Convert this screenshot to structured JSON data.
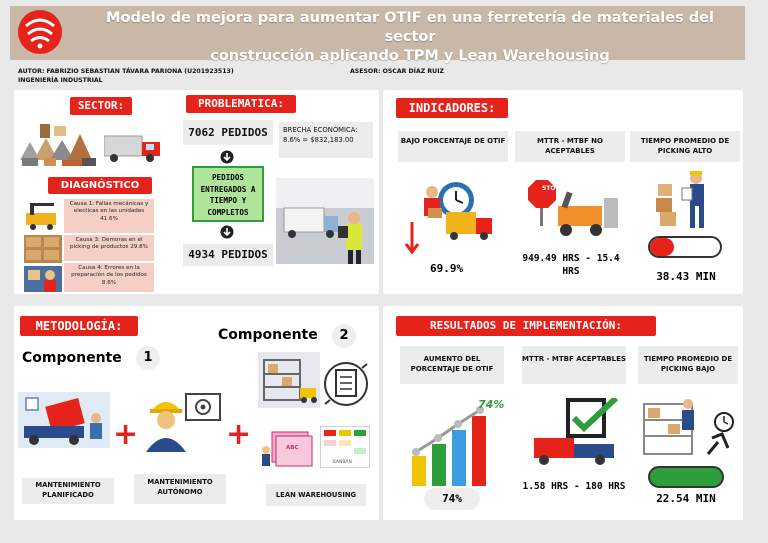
{
  "header": {
    "title_line1": "Modelo de mejora para aumentar OTIF en una ferretería de materiales del sector",
    "title_line2": "construcción aplicando TPM y Lean Warehousing",
    "author": "AUTOR: FABRIZIO SEBASTIAN TÁVARA PARIONA (U201923513)",
    "career": "INGENIERÍA INDUSTRIAL",
    "advisor": "ASESOR: OSCAR DÍAZ RUIZ"
  },
  "sector": {
    "title": "SECTOR:"
  },
  "problematica": {
    "title": "PROBLEMATICA:",
    "pedidos_total": "7062 PEDIDOS",
    "brecha": "BRECHA ECONÓMICA: 8.6% = $832,183.00",
    "otif_box": "PEDIDOS ENTREGADOS A TIEMPO Y COMPLETOS",
    "pedidos_ok": "4934 PEDIDOS"
  },
  "diagnostico": {
    "title": "DIAGNÓSTICO",
    "causa1": "Causa 1: Fallas mecánicas y electicas en las unidades 41.6%",
    "causa3": "Causa 3: Demoras en el picking de productos 29.8%",
    "causa4": "Causa 4: Errores en la preparación de los pedidos 8.6%"
  },
  "indicadores": {
    "title": "INDICADORES:",
    "otif_label": "BAJO PORCENTAJE DE OTIF",
    "otif_value": "69.9%",
    "mttr_label": "MTTR - MTBF NO ACEPTABLES",
    "mttr_value": "949.49 HRS - 15.4 HRS",
    "picking_label": "TIEMPO PROMEDIO DE PICKING ALTO",
    "picking_value": "38.43 MIN",
    "stop_sign": "STOP"
  },
  "metodologia": {
    "title": "METODOLOGÍA:",
    "componente1": "Componente",
    "componente1_num": "1",
    "componente2": "Componente",
    "componente2_num": "2",
    "mant_planificado": "MANTENIMIENTO PLANIFICADO",
    "mant_autonomo": "MANTENIMIENTO AUTÓNOMO",
    "lean": "LEAN WAREHOUSING",
    "abc_label": "ABC",
    "kanban_label": "KANBAN"
  },
  "resultados": {
    "title": "RESULTADOS DE IMPLEMENTACIÓN:",
    "otif_label": "AUMENTO DEL PORCENTAJE DE OTIF",
    "otif_badge": "74%",
    "otif_value": "74%",
    "mttr_label": "MTTR - MTBF ACEPTABLES",
    "mttr_value": "1.58 HRS - 180 HRS",
    "picking_label": "TIEMPO PROMEDIO DE PICKING BAJO",
    "picking_value": "22.54 MIN"
  },
  "colors": {
    "accent_red": "#e5231b",
    "header_bg": "#c9b8a8",
    "green": "#2e9e3a",
    "pink": "#f5cfc6"
  }
}
